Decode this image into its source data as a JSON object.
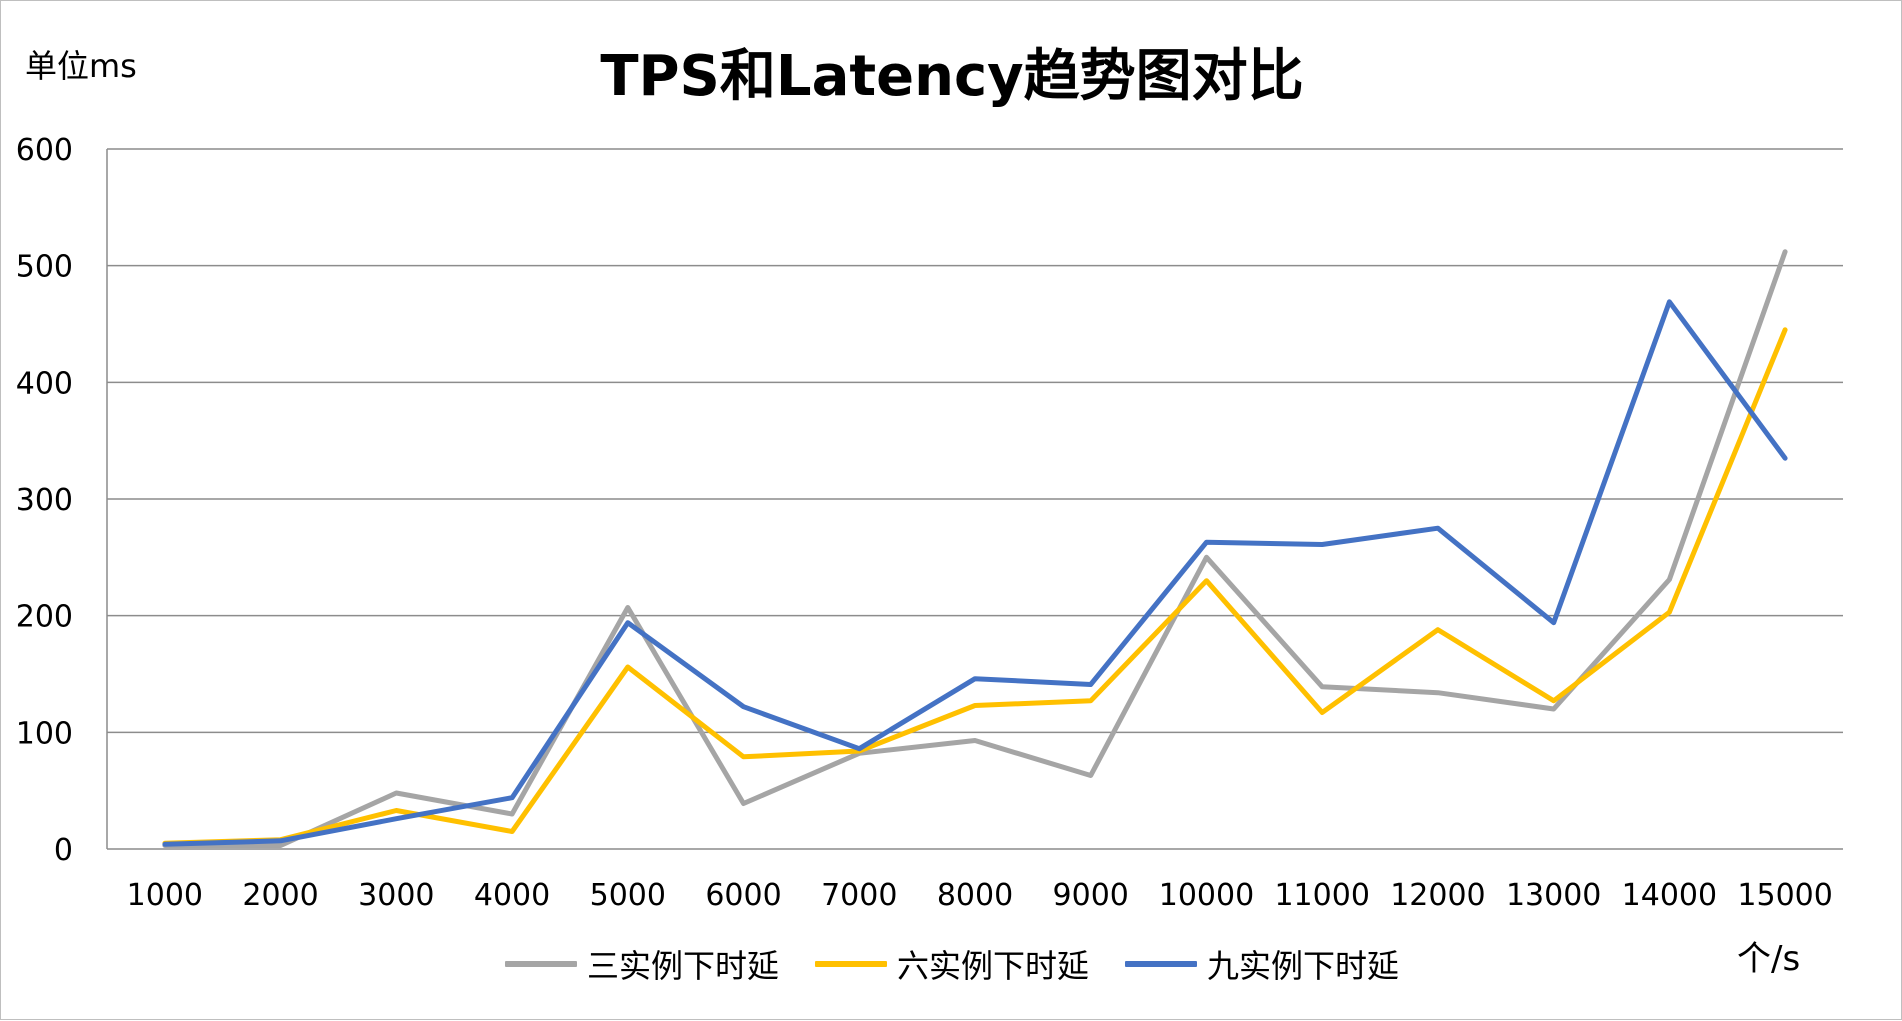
{
  "chart_data": {
    "type": "line",
    "title": "TPS和Latency趋势图对比",
    "ylabel": "单位ms",
    "xlabel": "个/s",
    "ylim": [
      0,
      600
    ],
    "yticks": [
      0,
      100,
      200,
      300,
      400,
      500,
      600
    ],
    "grid": true,
    "legend_position": "bottom",
    "categories": [
      "1000",
      "2000",
      "3000",
      "4000",
      "5000",
      "6000",
      "7000",
      "8000",
      "9000",
      "10000",
      "11000",
      "12000",
      "13000",
      "14000",
      "15000"
    ],
    "series": [
      {
        "name": "三实例下时延",
        "color": "#a5a5a5",
        "values": [
          3,
          3,
          48,
          30,
          207,
          39,
          82,
          93,
          63,
          250,
          139,
          134,
          120,
          231,
          512
        ]
      },
      {
        "name": "六实例下时延",
        "color": "#ffc000",
        "values": [
          5,
          8,
          33,
          15,
          156,
          79,
          84,
          123,
          127,
          230,
          117,
          188,
          127,
          203,
          445
        ]
      },
      {
        "name": "九实例下时延",
        "color": "#4472c4",
        "values": [
          4,
          7,
          26,
          44,
          194,
          122,
          86,
          146,
          141,
          263,
          261,
          275,
          194,
          469,
          335
        ]
      }
    ]
  }
}
